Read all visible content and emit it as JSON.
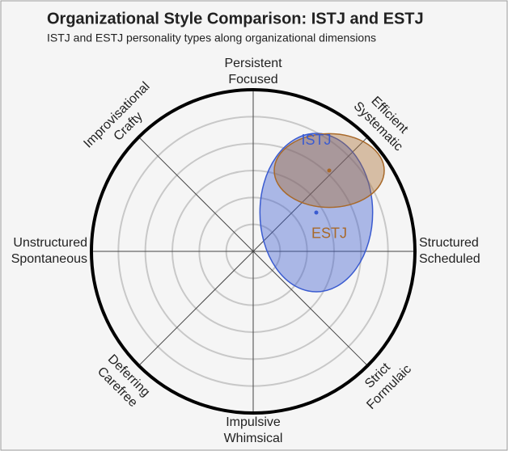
{
  "chart_data": {
    "type": "polar-ellipse",
    "title": "Organizational Style Comparison: ISTJ and ESTJ",
    "subtitle": "ISTJ and ESTJ personality types along organizational dimensions",
    "directions": [
      [
        "Structured",
        "Scheduled"
      ],
      [
        "Efficient",
        "Systematic"
      ],
      [
        "Persistent",
        "Focused"
      ],
      [
        "Improvisational",
        "Crafty"
      ],
      [
        "Unstructured",
        "Spontaneous"
      ],
      [
        "Deferring",
        "Carefree"
      ],
      [
        "Impulsive",
        "Whimsical"
      ],
      [
        "Strict",
        "Formulaic"
      ]
    ],
    "rlim": [
      0,
      6
    ],
    "rticks": [
      1,
      2,
      3,
      4,
      5
    ],
    "grid": true,
    "series": [
      {
        "name": "ISTJ",
        "color": "#3a5bd0",
        "x": 2.34,
        "y": 1.44,
        "rx": 2.09,
        "ry": 2.94
      },
      {
        "name": "ESTJ",
        "color": "#a8692a",
        "x": 2.82,
        "y": 3.0,
        "rx": 2.04,
        "ry": 1.37
      }
    ]
  }
}
